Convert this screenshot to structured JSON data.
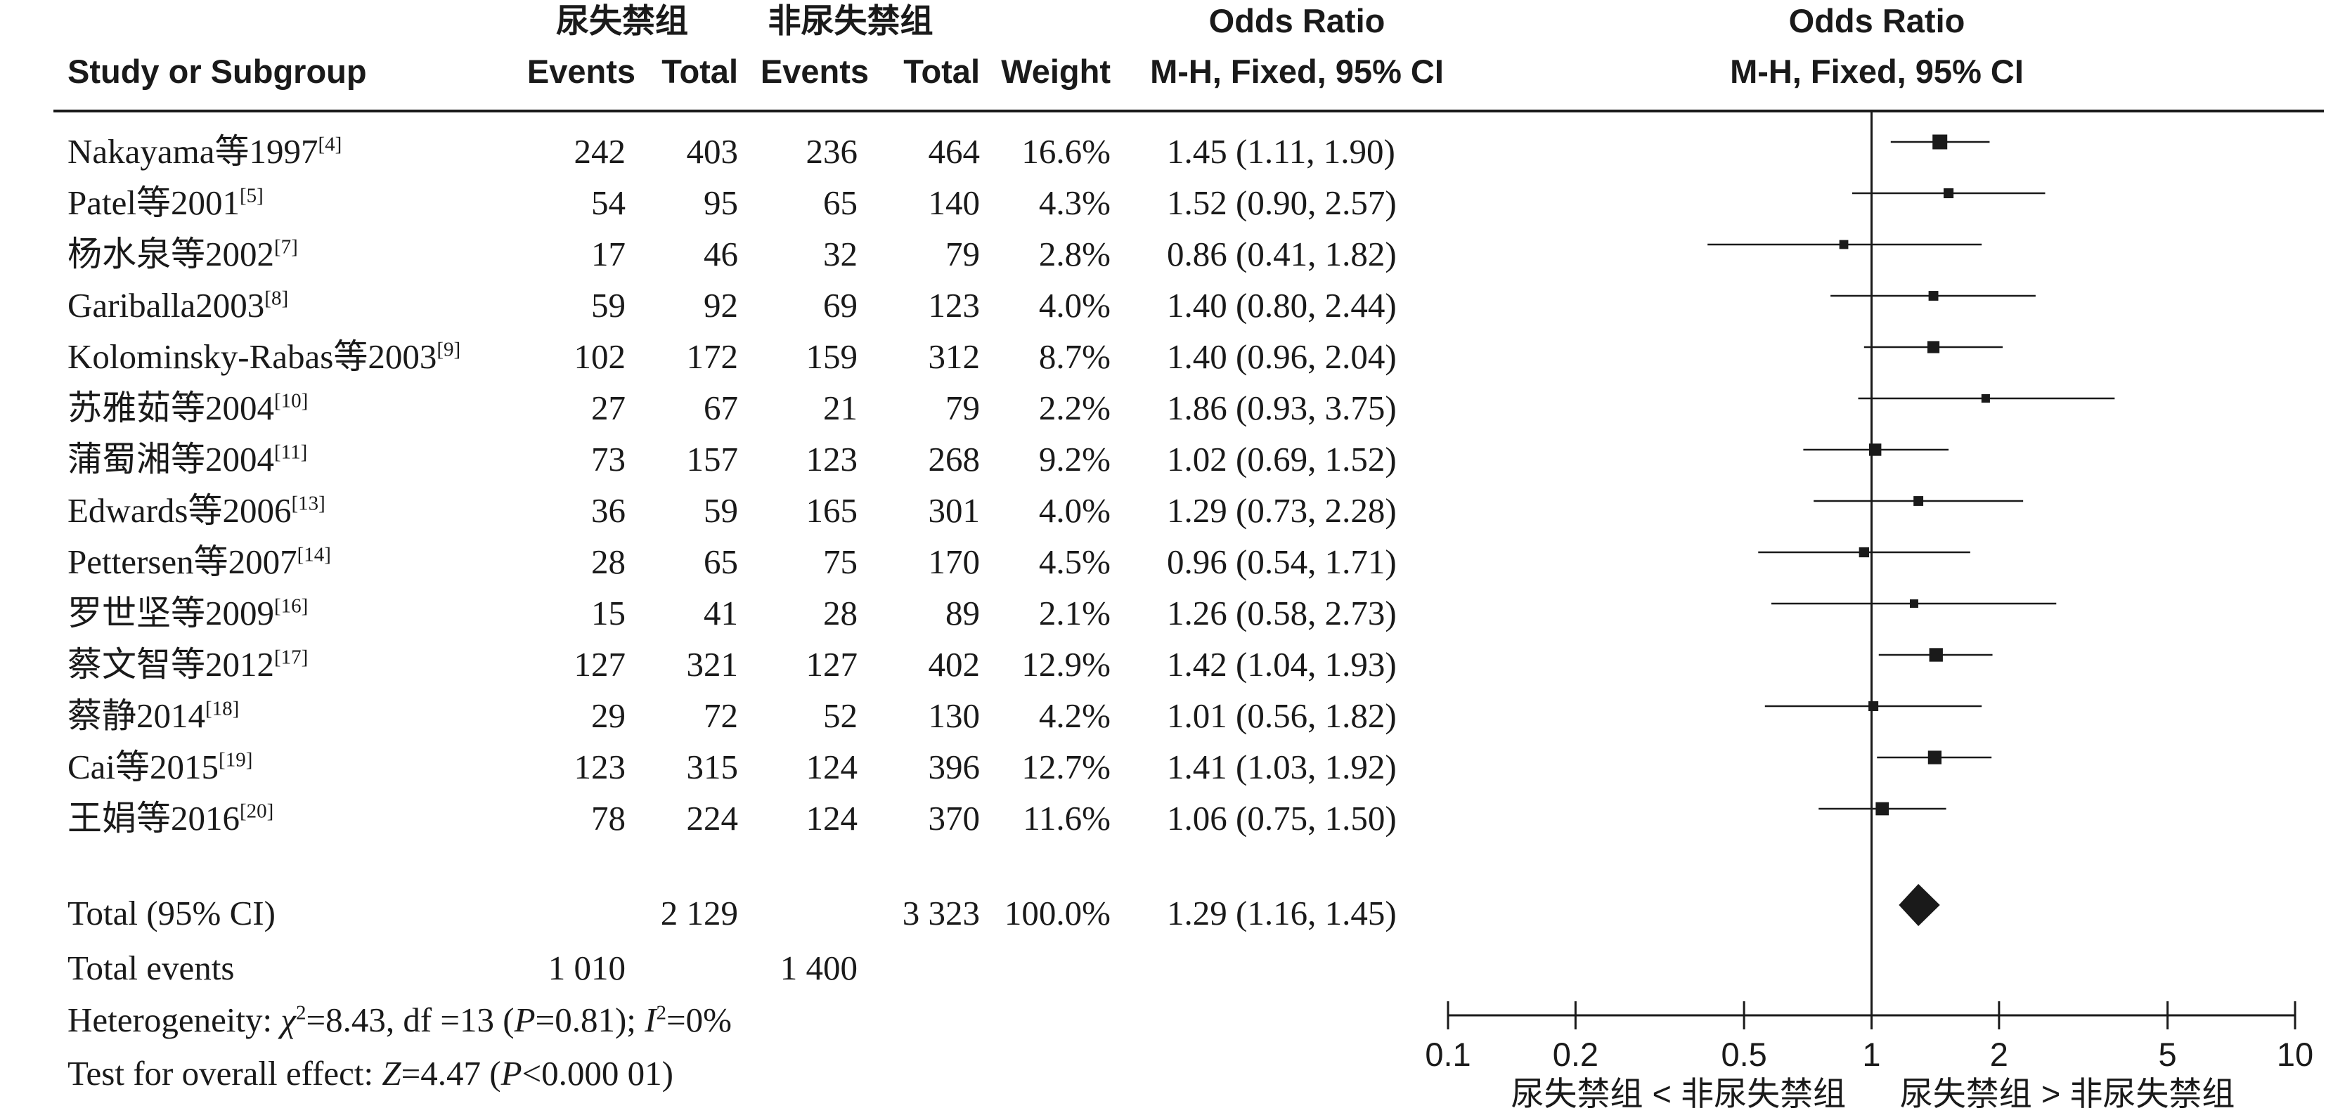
{
  "header": {
    "group1": "尿失禁组",
    "group2": "非尿失禁组",
    "odds_ratio_table": "Odds Ratio",
    "odds_ratio_plot": "Odds Ratio",
    "study": "Study or Subgroup",
    "events1": "Events",
    "total1": "Total",
    "events2": "Events",
    "total2": "Total",
    "weight": "Weight",
    "method_table": "M-H, Fixed, 95% CI",
    "method_plot": "M-H, Fixed, 95% CI"
  },
  "rows": [
    {
      "name": "Nakayama等1997",
      "ref": "[4]",
      "e1": "242",
      "t1": "403",
      "e2": "236",
      "t2": "464",
      "w": "16.6%",
      "ci": "1.45 (1.11, 1.90)"
    },
    {
      "name": "Patel等2001",
      "ref": "[5]",
      "e1": "54",
      "t1": "95",
      "e2": "65",
      "t2": "140",
      "w": "4.3%",
      "ci": "1.52 (0.90, 2.57)"
    },
    {
      "name": "杨水泉等2002",
      "ref": "[7]",
      "e1": "17",
      "t1": "46",
      "e2": "32",
      "t2": "79",
      "w": "2.8%",
      "ci": "0.86 (0.41, 1.82)"
    },
    {
      "name": "Gariballa2003",
      "ref": "[8]",
      "e1": "59",
      "t1": "92",
      "e2": "69",
      "t2": "123",
      "w": "4.0%",
      "ci": "1.40 (0.80, 2.44)"
    },
    {
      "name": "Kolominsky-Rabas等2003",
      "ref": "[9]",
      "e1": "102",
      "t1": "172",
      "e2": "159",
      "t2": "312",
      "w": "8.7%",
      "ci": "1.40 (0.96, 2.04)"
    },
    {
      "name": "苏雅茹等2004",
      "ref": "[10]",
      "e1": "27",
      "t1": "67",
      "e2": "21",
      "t2": "79",
      "w": "2.2%",
      "ci": "1.86 (0.93, 3.75)"
    },
    {
      "name": "蒲蜀湘等2004",
      "ref": "[11]",
      "e1": "73",
      "t1": "157",
      "e2": "123",
      "t2": "268",
      "w": "9.2%",
      "ci": "1.02 (0.69, 1.52)"
    },
    {
      "name": "Edwards等2006",
      "ref": "[13]",
      "e1": "36",
      "t1": "59",
      "e2": "165",
      "t2": "301",
      "w": "4.0%",
      "ci": "1.29 (0.73, 2.28)"
    },
    {
      "name": "Pettersen等2007",
      "ref": "[14]",
      "e1": "28",
      "t1": "65",
      "e2": "75",
      "t2": "170",
      "w": "4.5%",
      "ci": "0.96 (0.54, 1.71)"
    },
    {
      "name": "罗世坚等2009",
      "ref": "[16]",
      "e1": "15",
      "t1": "41",
      "e2": "28",
      "t2": "89",
      "w": "2.1%",
      "ci": "1.26 (0.58, 2.73)"
    },
    {
      "name": "蔡文智等2012",
      "ref": "[17]",
      "e1": "127",
      "t1": "321",
      "e2": "127",
      "t2": "402",
      "w": "12.9%",
      "ci": "1.42 (1.04, 1.93)"
    },
    {
      "name": "蔡静2014",
      "ref": "[18]",
      "e1": "29",
      "t1": "72",
      "e2": "52",
      "t2": "130",
      "w": "4.2%",
      "ci": "1.01 (0.56, 1.82)"
    },
    {
      "name": "Cai等2015",
      "ref": "[19]",
      "e1": "123",
      "t1": "315",
      "e2": "124",
      "t2": "396",
      "w": "12.7%",
      "ci": "1.41 (1.03, 1.92)"
    },
    {
      "name": "王娟等2016",
      "ref": "[20]",
      "e1": "78",
      "t1": "224",
      "e2": "124",
      "t2": "370",
      "w": "11.6%",
      "ci": "1.06 (0.75, 1.50)"
    }
  ],
  "total": {
    "label": "Total (95% CI)",
    "t1": "2 129",
    "t2": "3 323",
    "w": "100.0%",
    "ci": "1.29 (1.16, 1.45)"
  },
  "total_events": {
    "label": "Total events",
    "e1": "1 010",
    "e2": "1 400"
  },
  "heterogeneity": {
    "label": "Heterogeneity: ",
    "chi": "χ",
    "chi_sup": "2",
    "chi_rest": "=8.43, df =13 (",
    "p": "P",
    "p_rest": "=0.81); ",
    "i": "I",
    "i_sup": "2",
    "i_rest": "=0%"
  },
  "overall": {
    "label": "Test for overall effect: ",
    "z": "Z",
    "z_rest": "=4.47 (",
    "p": "P",
    "p_rest": "<0.000 01)"
  },
  "chart_data": {
    "type": "forest",
    "axis_scale": "log",
    "xlim": [
      0.1,
      10
    ],
    "ticks": [
      0.1,
      0.2,
      0.5,
      1,
      2,
      5,
      10
    ],
    "tick_labels": [
      "0.1",
      "0.2",
      "0.5",
      "1",
      "2",
      "5",
      "10"
    ],
    "left_label": "尿失禁组 < 非尿失禁组",
    "right_label": "尿失禁组 > 非尿失禁组",
    "studies": [
      {
        "or": 1.45,
        "lo": 1.11,
        "hi": 1.9,
        "weight": 16.6
      },
      {
        "or": 1.52,
        "lo": 0.9,
        "hi": 2.57,
        "weight": 4.3
      },
      {
        "or": 0.86,
        "lo": 0.41,
        "hi": 1.82,
        "weight": 2.8
      },
      {
        "or": 1.4,
        "lo": 0.8,
        "hi": 2.44,
        "weight": 4.0
      },
      {
        "or": 1.4,
        "lo": 0.96,
        "hi": 2.04,
        "weight": 8.7
      },
      {
        "or": 1.86,
        "lo": 0.93,
        "hi": 3.75,
        "weight": 2.2
      },
      {
        "or": 1.02,
        "lo": 0.69,
        "hi": 1.52,
        "weight": 9.2
      },
      {
        "or": 1.29,
        "lo": 0.73,
        "hi": 2.28,
        "weight": 4.0
      },
      {
        "or": 0.96,
        "lo": 0.54,
        "hi": 1.71,
        "weight": 4.5
      },
      {
        "or": 1.26,
        "lo": 0.58,
        "hi": 2.73,
        "weight": 2.1
      },
      {
        "or": 1.42,
        "lo": 1.04,
        "hi": 1.93,
        "weight": 12.9
      },
      {
        "or": 1.01,
        "lo": 0.56,
        "hi": 1.82,
        "weight": 4.2
      },
      {
        "or": 1.41,
        "lo": 1.03,
        "hi": 1.92,
        "weight": 12.7
      },
      {
        "or": 1.06,
        "lo": 0.75,
        "hi": 1.5,
        "weight": 11.6
      }
    ],
    "pooled": {
      "or": 1.29,
      "lo": 1.16,
      "hi": 1.45
    }
  }
}
